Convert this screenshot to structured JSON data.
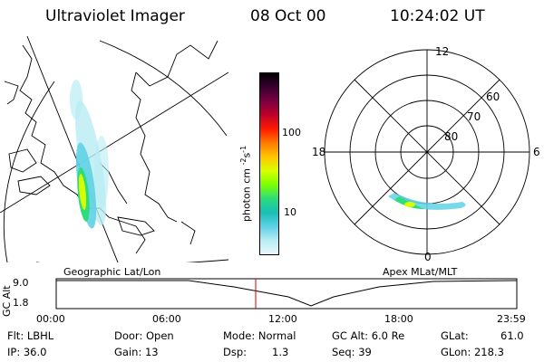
{
  "header": {
    "instrument": "Ultraviolet Imager",
    "date": "08 Oct 00",
    "time": "10:24:02 UT"
  },
  "geo_panel": {
    "label": "Geographic Lat/Lon"
  },
  "apex_panel": {
    "label": "Apex MLat/MLT",
    "mlt_labels": {
      "top": "12",
      "left": "18",
      "right": "6",
      "bottom": "0"
    },
    "mlat_labels": [
      "60",
      "70",
      "80"
    ]
  },
  "colorbar": {
    "unit_label": "photon cm",
    "unit_exp1": "-2",
    "unit_mid": "s",
    "unit_exp2": "-1",
    "tick_100": "100",
    "tick_10": "10",
    "colors": [
      "#000000",
      "#3a0030",
      "#7a0040",
      "#c0002a",
      "#ff1a00",
      "#ff7a00",
      "#ffc400",
      "#d8ff00",
      "#7dff00",
      "#2ddc7a",
      "#17bfb6",
      "#5fd2e6",
      "#b8ecf4",
      "#e8f8fb"
    ]
  },
  "altitude_plot": {
    "ylabel": "GC Alt",
    "y_ticks": [
      "9.0",
      "1.8"
    ],
    "x_ticks": [
      "00:00",
      "06:00",
      "12:00",
      "18:00",
      "23:59"
    ]
  },
  "footer": {
    "filter": "Flt: LBHL",
    "ip": "IP: 36.0",
    "door": "Door: Open",
    "gain": "Gain: 13",
    "mode": "Mode: Normal",
    "dsp": "Dsp:",
    "dsp_value": "1.3",
    "gc_alt": "GC Alt: 6.0 Re",
    "seq": "Seq: 39",
    "glat": "GLat:",
    "glat_value": "61.0",
    "glon": "GLon: 218.3"
  }
}
